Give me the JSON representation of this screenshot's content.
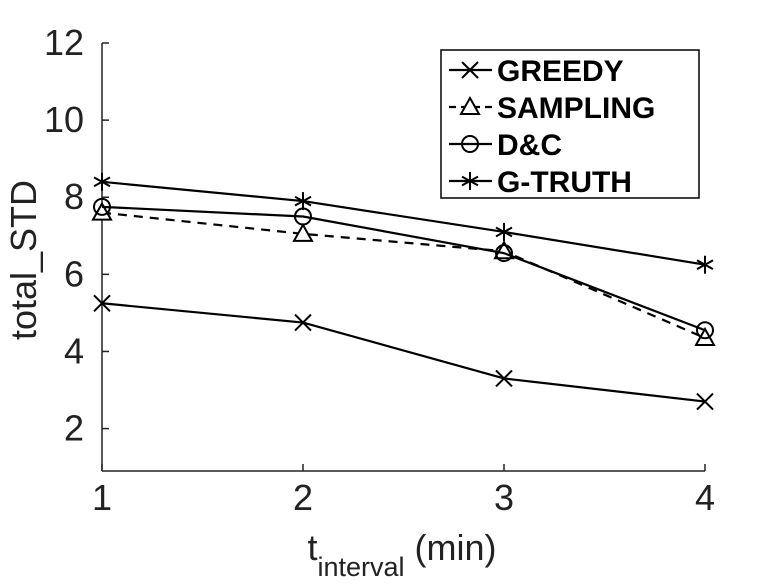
{
  "chart_data": {
    "type": "line",
    "title": "",
    "xlabel": "t",
    "xlabel_subscript": "interval",
    "xlabel_suffix": " (min)",
    "ylabel": "total_STD",
    "x": [
      1,
      2,
      3,
      4
    ],
    "xlim": [
      1,
      4
    ],
    "ylim": [
      0.9,
      12
    ],
    "xticks": [
      "1",
      "2",
      "3",
      "4"
    ],
    "yticks": [
      "2",
      "4",
      "6",
      "8",
      "10",
      "12"
    ],
    "grid": false,
    "legend_position": "top-right",
    "series": [
      {
        "name": "GREEDY",
        "marker": "x",
        "line_style": "solid",
        "values": [
          5.25,
          4.75,
          3.3,
          2.7
        ]
      },
      {
        "name": "SAMPLING",
        "marker": "triangle",
        "line_style": "dashed",
        "values": [
          7.6,
          7.05,
          6.6,
          4.35
        ]
      },
      {
        "name": "D&C",
        "marker": "circle",
        "line_style": "solid",
        "values": [
          7.75,
          7.5,
          6.55,
          4.55
        ]
      },
      {
        "name": "G-TRUTH",
        "marker": "asterisk",
        "line_style": "solid",
        "values": [
          8.4,
          7.9,
          7.1,
          6.25
        ]
      }
    ],
    "colors": {
      "line": "#000000",
      "axis": "#222222"
    }
  }
}
